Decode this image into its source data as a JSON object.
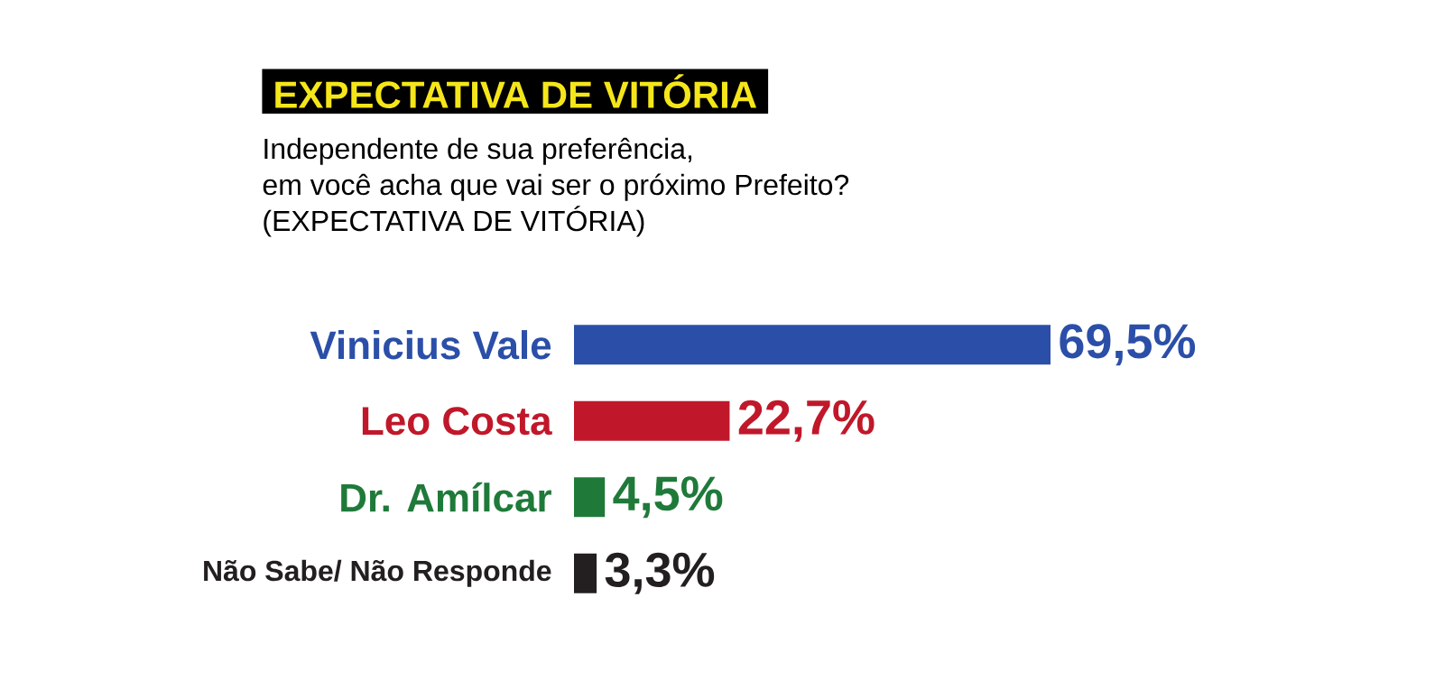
{
  "chart_data": {
    "type": "bar",
    "orientation": "horizontal",
    "title": "EXPECTATIVA DE VITÓRIA",
    "subtitle": "Independente de sua preferência,",
    "annotations": [
      "em você acha que vai ser o próximo Prefeito?",
      "(EXPECTATIVA DE VITÓRIA)"
    ],
    "categories": [
      "Vinicius Vale",
      "Leo Costa",
      "Dr. Amílcar",
      "Não Sabe/ Não Responde"
    ],
    "values": [
      69.5,
      22.7,
      4.5,
      3.3
    ],
    "value_labels": [
      "69,5%",
      "22,7%",
      "4,5%",
      "3,3%"
    ],
    "colors": [
      "#2b4fa8",
      "#c0182a",
      "#1f7a3a",
      "#231f20"
    ]
  }
}
